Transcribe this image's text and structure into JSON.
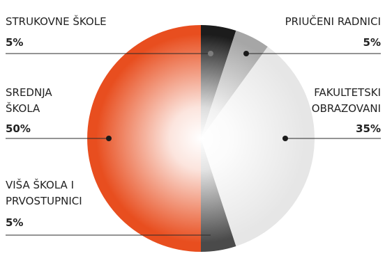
{
  "chart_data": {
    "type": "pie",
    "slices": [
      {
        "label_lines": [
          "STRUKOVNE ŠKOLE"
        ],
        "value": 5,
        "value_label": "5%",
        "color": "#1c1c1c"
      },
      {
        "label_lines": [
          "PRIUČENI RADNICI"
        ],
        "value": 5,
        "value_label": "5%",
        "color": "#a6a6a6"
      },
      {
        "label_lines": [
          "FAKULTETSKI",
          "OBRAZOVANI"
        ],
        "value": 35,
        "value_label": "35%",
        "color": "#e6e6e6"
      },
      {
        "label_lines": [
          "VIŠA ŠKOLA I",
          "PRVOSTUPNICI"
        ],
        "value": 5,
        "value_label": "5%",
        "color": "#4a4a4a"
      },
      {
        "label_lines": [
          "SREDNJA",
          "ŠKOLA"
        ],
        "value": 50,
        "value_label": "50%",
        "color": "#e84e1f"
      }
    ]
  }
}
